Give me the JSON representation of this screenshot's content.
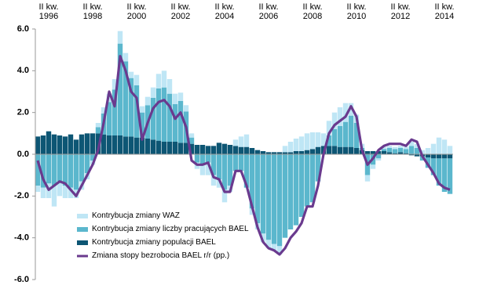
{
  "chart_data": {
    "type": "bar",
    "stacked": true,
    "legend": "lower-left",
    "categories": [
      null,
      null,
      "II kw. 1996",
      null,
      null,
      null,
      null,
      null,
      null,
      null,
      "II kw. 1998",
      null,
      null,
      null,
      null,
      null,
      null,
      null,
      "II kw. 2000",
      null,
      null,
      null,
      null,
      null,
      null,
      null,
      "II kw. 2002",
      null,
      null,
      null,
      null,
      null,
      null,
      null,
      "II kw. 2004",
      null,
      null,
      null,
      null,
      null,
      null,
      null,
      "II kw. 2006",
      null,
      null,
      null,
      null,
      null,
      null,
      null,
      "II kw. 2008",
      null,
      null,
      null,
      null,
      null,
      null,
      null,
      "II kw. 2010",
      null,
      null,
      null,
      null,
      null,
      null,
      null,
      "II kw. 2012",
      null,
      null,
      null,
      null,
      null,
      null,
      null,
      "II kw. 2014",
      null
    ],
    "ylim": [
      -6,
      6
    ],
    "yticks": [
      {
        "value": -6,
        "label": "-6.0"
      },
      {
        "value": -4,
        "label": "-4.0"
      },
      {
        "value": -2,
        "label": "-2.0"
      },
      {
        "value": 0,
        "label": "0.0"
      },
      {
        "value": 2,
        "label": "2.0"
      },
      {
        "value": 4,
        "label": "4.0"
      },
      {
        "value": 6,
        "label": "6.0"
      }
    ],
    "series": [
      {
        "name": "Kontrybucja zmiany populacji BAEL",
        "color": "#0d5674",
        "values": [
          0.85,
          0.9,
          1.1,
          0.95,
          0.9,
          0.85,
          0.95,
          0.7,
          0.95,
          1.0,
          1.0,
          1.0,
          0.95,
          0.9,
          0.9,
          0.9,
          0.85,
          0.85,
          0.8,
          0.8,
          0.75,
          0.7,
          0.65,
          0.6,
          0.6,
          0.6,
          0.55,
          0.55,
          0.5,
          0.45,
          0.45,
          0.4,
          0.4,
          0.55,
          0.5,
          0.45,
          0.4,
          0.35,
          0.35,
          0.3,
          0.2,
          0.15,
          0.1,
          0.1,
          0.1,
          0.1,
          0.1,
          0.15,
          0.15,
          0.2,
          0.25,
          0.35,
          0.4,
          0.4,
          0.4,
          0.35,
          0.35,
          0.35,
          0.3,
          0.2,
          0.15,
          0.15,
          0.15,
          0.15,
          0.1,
          0.05,
          0.1,
          0.05,
          -0.05,
          -0.1,
          -0.1,
          -0.15,
          -0.2,
          -0.2,
          -0.2,
          -0.2
        ]
      },
      {
        "name": "Kontrybucja zmiany liczby pracujących BAEL",
        "color": "#5bb7cd",
        "values": [
          -1.5,
          -1.6,
          -1.4,
          -1.5,
          -1.3,
          -1.5,
          -1.6,
          -1.7,
          -1.3,
          -0.9,
          -0.3,
          0.3,
          1.0,
          1.6,
          2.2,
          4.4,
          3.6,
          2.8,
          2.5,
          1.2,
          1.6,
          2.0,
          2.5,
          2.6,
          2.3,
          1.8,
          2.0,
          1.5,
          0.3,
          -0.4,
          -0.5,
          -0.4,
          -1.0,
          -1.2,
          -1.7,
          -1.5,
          -0.8,
          -0.8,
          -1.6,
          -2.6,
          -3.3,
          -3.8,
          -4.1,
          -4.3,
          -4.4,
          -4.0,
          -3.6,
          -3.4,
          -3.0,
          -2.5,
          -2.3,
          -1.3,
          0.0,
          0.5,
          0.8,
          1.0,
          1.2,
          1.5,
          1.2,
          0.1,
          -1.0,
          -0.5,
          -0.2,
          0.1,
          0.2,
          0.2,
          0.2,
          0.2,
          0.4,
          0.3,
          -0.2,
          -0.5,
          -0.8,
          -1.3,
          -1.6,
          -1.7
        ]
      },
      {
        "name": "Kontrybucja zmiany WAZ",
        "color": "#bfe6f5",
        "values": [
          -0.3,
          -0.5,
          -0.7,
          -1.0,
          -0.7,
          -0.6,
          -0.5,
          -0.4,
          -0.4,
          -0.3,
          -0.2,
          0.2,
          0.3,
          0.4,
          0.5,
          0.6,
          0.4,
          0.3,
          0.5,
          0.3,
          0.4,
          0.5,
          0.7,
          0.8,
          0.7,
          0.5,
          0.4,
          0.3,
          0.2,
          -0.3,
          -0.5,
          -0.6,
          -0.5,
          -0.4,
          -0.6,
          -0.3,
          0.3,
          0.5,
          0.6,
          -0.3,
          -0.3,
          -0.4,
          -0.4,
          -0.3,
          -0.4,
          0.3,
          0.5,
          0.6,
          0.7,
          0.8,
          0.8,
          0.7,
          0.6,
          0.7,
          0.8,
          0.9,
          0.9,
          0.6,
          0.4,
          0.2,
          -0.3,
          -0.2,
          -0.1,
          0.1,
          0.1,
          0.1,
          0.1,
          0.1,
          0.2,
          0.2,
          0.2,
          0.3,
          0.5,
          0.8,
          0.7,
          0.4
        ]
      },
      {
        "name": "Zmiana stopy bezrobocia BAEL r/r (pp.)",
        "type": "line",
        "color": "#6a3a8e",
        "values": [
          -0.3,
          -1.2,
          -1.7,
          -1.5,
          -1.3,
          -1.4,
          -1.7,
          -2.0,
          -1.5,
          -1.0,
          -0.5,
          0.2,
          1.5,
          3.0,
          2.3,
          4.7,
          4.0,
          3.0,
          2.7,
          0.7,
          1.5,
          2.2,
          2.5,
          2.6,
          2.3,
          1.7,
          2.0,
          1.3,
          -0.3,
          -0.5,
          -0.5,
          -0.4,
          -1.1,
          -1.2,
          -1.8,
          -1.8,
          -0.8,
          -0.8,
          -1.5,
          -2.5,
          -3.5,
          -4.2,
          -4.5,
          -4.6,
          -4.8,
          -4.5,
          -4.0,
          -3.7,
          -3.3,
          -2.5,
          -2.5,
          -1.5,
          0.0,
          1.0,
          1.4,
          1.6,
          1.8,
          2.3,
          1.8,
          0.2,
          -0.5,
          -0.2,
          0.2,
          0.4,
          0.5,
          0.5,
          0.5,
          0.4,
          0.7,
          0.6,
          -0.1,
          -0.5,
          -0.9,
          -1.4,
          -1.6,
          -1.7
        ]
      }
    ]
  }
}
